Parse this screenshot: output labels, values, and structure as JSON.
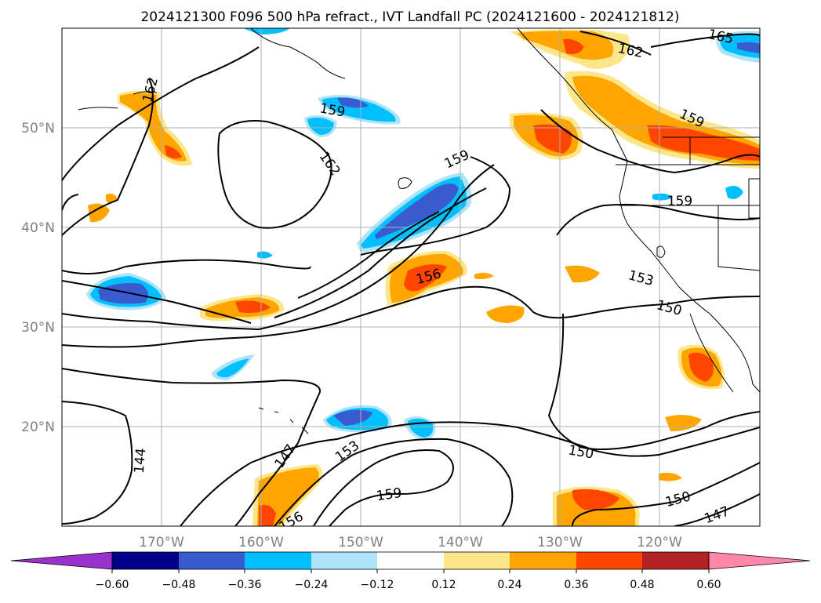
{
  "title": "2024121300 F096 500 hPa refract., IVT Landfall PC (2024121600 - 2024121812)",
  "map": {
    "lat_labels": [
      "50°N",
      "40°N",
      "30°N",
      "20°N"
    ],
    "lon_labels": [
      "170°W",
      "160°W",
      "150°W",
      "140°W",
      "130°W",
      "120°W"
    ],
    "contour_labels": [
      "165",
      "162",
      "162",
      "159",
      "159",
      "159",
      "162",
      "159",
      "156",
      "153",
      "150",
      "150",
      "150",
      "147",
      "153",
      "159",
      "147",
      "144",
      "156"
    ]
  },
  "colorbar": {
    "ticks": [
      "−0.60",
      "−0.48",
      "−0.36",
      "−0.24",
      "−0.12",
      "0.12",
      "0.24",
      "0.36",
      "0.48",
      "0.60"
    ],
    "colors": [
      "#9932cc",
      "#000088",
      "#3a5bd0",
      "#00bfff",
      "#aee4fa",
      "#ffffff",
      "#fde68a",
      "#ffa500",
      "#ff4500",
      "#b22222",
      "#ff88aa"
    ]
  }
}
